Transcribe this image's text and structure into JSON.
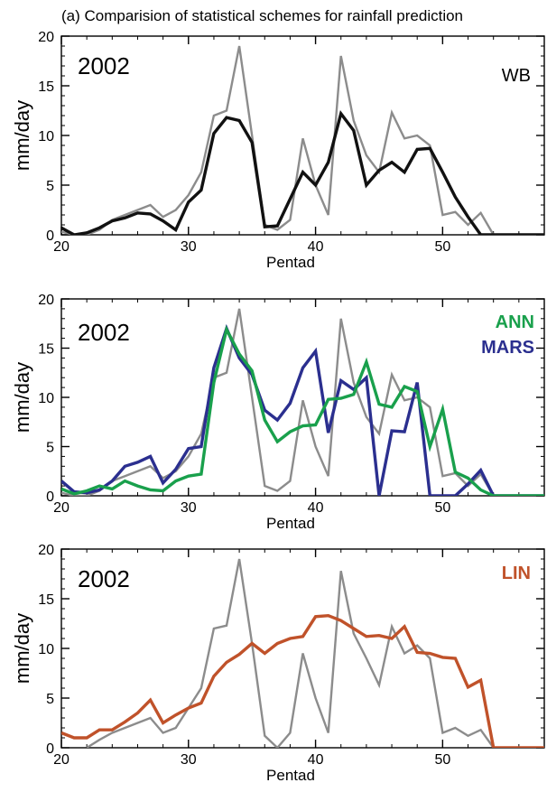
{
  "figure_title": "(a) Comparision of statistical schemes for rainfall prediction",
  "chart_data": [
    {
      "type": "line",
      "xlabel": "Pentad",
      "ylabel": "mm/day",
      "year_label": "2002",
      "xlim": [
        20,
        58
      ],
      "ylim": [
        0,
        20
      ],
      "xticks": [
        20,
        30,
        40,
        50
      ],
      "yticks": [
        0,
        5,
        10,
        15,
        20
      ],
      "series": [
        {
          "key": "observed",
          "color": "#8c8c8c",
          "x": [
            20,
            21,
            22,
            23,
            24,
            25,
            26,
            27,
            28,
            29,
            30,
            31,
            32,
            33,
            34,
            35,
            36,
            37,
            38,
            39,
            40,
            41,
            42,
            43,
            44,
            45,
            46,
            47,
            48,
            49,
            50,
            51,
            52,
            53,
            54
          ],
          "values": [
            0.3,
            0,
            0,
            0.5,
            1.5,
            2,
            2.5,
            3,
            1.8,
            2.5,
            4,
            6.3,
            12,
            12.5,
            19,
            10,
            1,
            0.5,
            1.5,
            9.7,
            5,
            2,
            18,
            11.5,
            8,
            6.3,
            12.3,
            9.7,
            10,
            9,
            2,
            2.3,
            1,
            2.2,
            0
          ]
        },
        {
          "key": "WB",
          "name": "WB",
          "color": "#111111",
          "x": [
            20,
            21,
            22,
            23,
            24,
            25,
            26,
            27,
            28,
            29,
            30,
            31,
            32,
            33,
            34,
            35,
            36,
            37,
            38,
            39,
            40,
            41,
            42,
            43,
            44,
            45,
            46,
            47,
            48,
            49,
            50,
            51,
            52,
            53,
            54,
            55,
            56,
            57,
            58
          ],
          "values": [
            0.7,
            0,
            0.2,
            0.7,
            1.4,
            1.7,
            2.2,
            2.1,
            1.4,
            0.5,
            3.3,
            4.5,
            10.2,
            11.8,
            11.5,
            9.3,
            0.8,
            0.9,
            3.6,
            6.3,
            5,
            7.3,
            12.2,
            10.5,
            5,
            6.5,
            7.3,
            6.3,
            8.6,
            8.7,
            6.3,
            3.8,
            1.8,
            0,
            0,
            0,
            0,
            0,
            0
          ]
        }
      ]
    },
    {
      "type": "line",
      "xlabel": "Pentad",
      "ylabel": "mm/day",
      "year_label": "2002",
      "xlim": [
        20,
        58
      ],
      "ylim": [
        0,
        20
      ],
      "xticks": [
        20,
        30,
        40,
        50
      ],
      "yticks": [
        0,
        5,
        10,
        15,
        20
      ],
      "series": [
        {
          "key": "observed",
          "color": "#8c8c8c",
          "x": [
            20,
            21,
            22,
            23,
            24,
            25,
            26,
            27,
            28,
            29,
            30,
            31,
            32,
            33,
            34,
            35,
            36,
            37,
            38,
            39,
            40,
            41,
            42,
            43,
            44,
            45,
            46,
            47,
            48,
            49,
            50,
            51,
            52,
            53,
            54
          ],
          "values": [
            0.3,
            0,
            0,
            0.5,
            1.5,
            2,
            2.5,
            3,
            1.8,
            2.5,
            4,
            6.3,
            12,
            12.5,
            19,
            10,
            1,
            0.5,
            1.5,
            9.7,
            5,
            2,
            18,
            11.5,
            8,
            6.3,
            12.3,
            9.7,
            10,
            9,
            2,
            2.3,
            1,
            2.2,
            0
          ]
        },
        {
          "key": "MARS",
          "name": "MARS",
          "color": "#2b2f8f",
          "x": [
            20,
            21,
            22,
            23,
            24,
            25,
            26,
            27,
            28,
            29,
            30,
            31,
            32,
            33,
            34,
            35,
            36,
            37,
            38,
            39,
            40,
            41,
            42,
            43,
            44,
            45,
            46,
            47,
            48,
            49,
            50,
            51,
            52,
            53,
            54,
            55,
            56,
            57,
            58
          ],
          "values": [
            1.5,
            0.4,
            0.3,
            0.6,
            1.5,
            3,
            3.4,
            4,
            1.3,
            2.7,
            4.8,
            5,
            13,
            17,
            14,
            12.3,
            8.7,
            7.7,
            9.4,
            13,
            14.7,
            6.4,
            11.7,
            10.8,
            12,
            0,
            6.6,
            6.5,
            11.5,
            0,
            0,
            0,
            1.2,
            2.6,
            0,
            0,
            0,
            0,
            0
          ]
        },
        {
          "key": "ANN",
          "name": "ANN",
          "color": "#19a04c",
          "x": [
            20,
            21,
            22,
            23,
            24,
            25,
            26,
            27,
            28,
            29,
            30,
            31,
            32,
            33,
            34,
            35,
            36,
            37,
            38,
            39,
            40,
            41,
            42,
            43,
            44,
            45,
            46,
            47,
            48,
            49,
            50,
            51,
            52,
            53,
            54,
            55,
            56,
            57,
            58
          ],
          "values": [
            0.7,
            0.2,
            0.5,
            1,
            0.7,
            1.5,
            1,
            0.6,
            0.5,
            1.5,
            2,
            2.2,
            11.5,
            16.9,
            14.4,
            12.7,
            7.7,
            5.5,
            6.5,
            7.1,
            7.2,
            9.8,
            9.9,
            10.3,
            13.6,
            9.3,
            9,
            11.1,
            10.6,
            5,
            8.8,
            2.4,
            1.8,
            0.6,
            0,
            0,
            0,
            0,
            0
          ]
        }
      ]
    },
    {
      "type": "line",
      "xlabel": "Pentad",
      "ylabel": "mm/day",
      "year_label": "2002",
      "xlim": [
        20,
        58
      ],
      "ylim": [
        0,
        20
      ],
      "xticks": [
        20,
        30,
        40,
        50
      ],
      "yticks": [
        0,
        5,
        10,
        15,
        20
      ],
      "series": [
        {
          "key": "observed",
          "color": "#8c8c8c",
          "x": [
            22,
            23,
            24,
            25,
            26,
            27,
            28,
            29,
            30,
            31,
            32,
            33,
            34,
            35,
            36,
            37,
            38,
            39,
            40,
            41,
            42,
            43,
            44,
            45,
            46,
            47,
            48,
            49,
            50,
            51,
            52,
            53,
            54
          ],
          "values": [
            0,
            0.8,
            1.5,
            2,
            2.5,
            3,
            1.5,
            2,
            4,
            6,
            12,
            12.3,
            19,
            10.5,
            1.2,
            0,
            1.5,
            9.5,
            5,
            1.5,
            17.8,
            11.5,
            9,
            6.3,
            12.2,
            9.5,
            10.3,
            9,
            1.5,
            2,
            1.2,
            1.8,
            0
          ]
        },
        {
          "key": "LIN",
          "name": "LIN",
          "color": "#c0522a",
          "x": [
            20,
            21,
            22,
            23,
            24,
            25,
            26,
            27,
            28,
            29,
            30,
            31,
            32,
            33,
            34,
            35,
            36,
            37,
            38,
            39,
            40,
            41,
            42,
            43,
            44,
            45,
            46,
            47,
            48,
            49,
            50,
            51,
            52,
            53,
            54,
            55,
            56,
            57,
            58
          ],
          "values": [
            1.5,
            1,
            1,
            1.8,
            1.8,
            2.6,
            3.5,
            4.8,
            2.5,
            3.3,
            4,
            4.5,
            7.2,
            8.6,
            9.4,
            10.5,
            9.5,
            10.5,
            11,
            11.2,
            13.2,
            13.3,
            12.8,
            12,
            11.2,
            11.3,
            11,
            12.2,
            9.6,
            9.5,
            9.1,
            9,
            6.1,
            6.8,
            0,
            0,
            0,
            0,
            0
          ]
        }
      ]
    }
  ]
}
